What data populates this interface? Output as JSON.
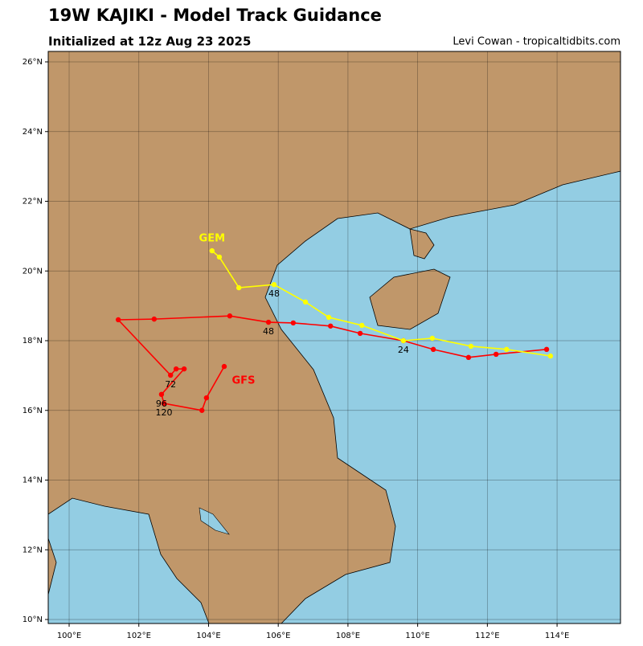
{
  "chart_data": {
    "type": "line",
    "title": "19W KAJIKI - Model Track Guidance",
    "subtitle": "Initialized at 12z Aug 23 2025",
    "credit": "Levi Cowan - tropicaltidbits.com",
    "xlim": [
      99.4,
      115.82
    ],
    "ylim": [
      9.885,
      26.3
    ],
    "xticks": [
      {
        "value": 100,
        "label": "100°E"
      },
      {
        "value": 102,
        "label": "102°E"
      },
      {
        "value": 104,
        "label": "104°E"
      },
      {
        "value": 106,
        "label": "106°E"
      },
      {
        "value": 108,
        "label": "108°E"
      },
      {
        "value": 110,
        "label": "110°E"
      },
      {
        "value": 112,
        "label": "112°E"
      },
      {
        "value": 114,
        "label": "114°E"
      }
    ],
    "yticks": [
      {
        "value": 10,
        "label": "10°N"
      },
      {
        "value": 12,
        "label": "12°N"
      },
      {
        "value": 14,
        "label": "14°N"
      },
      {
        "value": 16,
        "label": "16°N"
      },
      {
        "value": 18,
        "label": "18°N"
      },
      {
        "value": 20,
        "label": "20°N"
      },
      {
        "value": 22,
        "label": "22°N"
      },
      {
        "value": 24,
        "label": "24°N"
      },
      {
        "value": 26,
        "label": "26°N"
      }
    ],
    "grid": true,
    "series": [
      {
        "name": "GFS",
        "color": "#ff0000",
        "x": [
          113.7,
          112.25,
          111.46,
          110.45,
          109.59,
          108.35,
          107.5,
          106.43,
          105.72,
          104.61,
          102.44,
          101.41,
          102.91,
          103.07,
          103.3,
          102.65,
          102.72,
          103.81,
          103.94,
          104.45
        ],
        "values": [
          17.75,
          17.61,
          17.52,
          17.75,
          18.0,
          18.21,
          18.42,
          18.51,
          18.53,
          18.71,
          18.62,
          18.6,
          17.01,
          17.19,
          17.19,
          16.46,
          16.2,
          16.0,
          16.36,
          17.26
        ]
      },
      {
        "name": "GEM",
        "color": "#ffff00",
        "x": [
          104.1,
          104.31,
          104.87,
          105.88,
          106.78,
          107.45,
          108.4,
          109.59,
          110.42,
          111.53,
          112.55,
          113.81
        ],
        "values": [
          20.58,
          20.4,
          19.52,
          19.61,
          19.11,
          18.67,
          18.44,
          18.0,
          18.07,
          17.84,
          17.75,
          17.56
        ]
      }
    ],
    "annotations": [
      {
        "text": "24",
        "x": 109.59,
        "y": 18.0
      },
      {
        "text": "48",
        "x": 105.72,
        "y": 18.53
      },
      {
        "text": "48",
        "x": 105.88,
        "y": 19.61
      },
      {
        "text": "72",
        "x": 102.91,
        "y": 17.01
      },
      {
        "text": "96",
        "x": 102.65,
        "y": 16.46
      },
      {
        "text": "120",
        "x": 102.72,
        "y": 16.2
      }
    ]
  }
}
